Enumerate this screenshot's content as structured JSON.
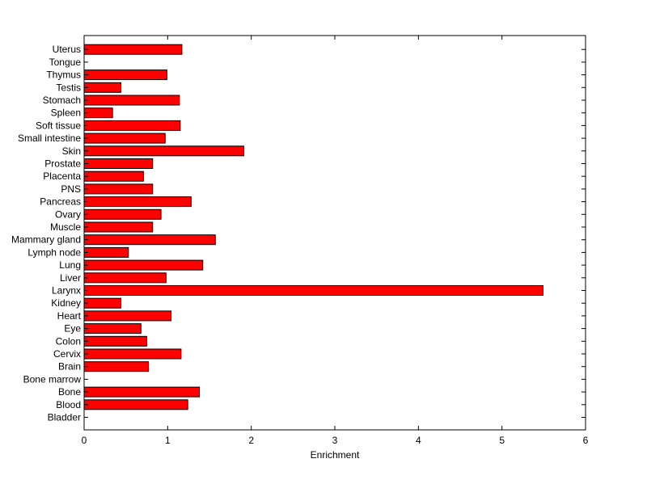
{
  "chart_data": {
    "type": "bar",
    "orientation": "horizontal",
    "title": "",
    "xlabel": "Enrichment",
    "ylabel": "",
    "xlim": [
      0,
      6
    ],
    "x_ticks": [
      "0",
      "1",
      "2",
      "3",
      "4",
      "5",
      "6"
    ],
    "grid": false,
    "legend": "none",
    "bar_color": "#ff0000",
    "bar_edge_color": "#000000",
    "categories": [
      "Bladder",
      "Blood",
      "Bone",
      "Bone marrow",
      "Brain",
      "Cervix",
      "Colon",
      "Eye",
      "Heart",
      "Kidney",
      "Larynx",
      "Liver",
      "Lung",
      "Lymph node",
      "Mammary gland",
      "Muscle",
      "Ovary",
      "Pancreas",
      "PNS",
      "Placenta",
      "Prostate",
      "Skin",
      "Small intestine",
      "Soft tissue",
      "Spleen",
      "Stomach",
      "Testis",
      "Thymus",
      "Tongue",
      "Uterus"
    ],
    "values": [
      0,
      1.24,
      1.38,
      0,
      0.77,
      1.16,
      0.75,
      0.68,
      1.04,
      0.44,
      5.49,
      0.98,
      1.42,
      0.53,
      1.57,
      0.82,
      0.92,
      1.28,
      0.82,
      0.71,
      0.82,
      1.91,
      0.97,
      1.15,
      0.34,
      1.14,
      0.44,
      0.99,
      0,
      1.17
    ]
  }
}
